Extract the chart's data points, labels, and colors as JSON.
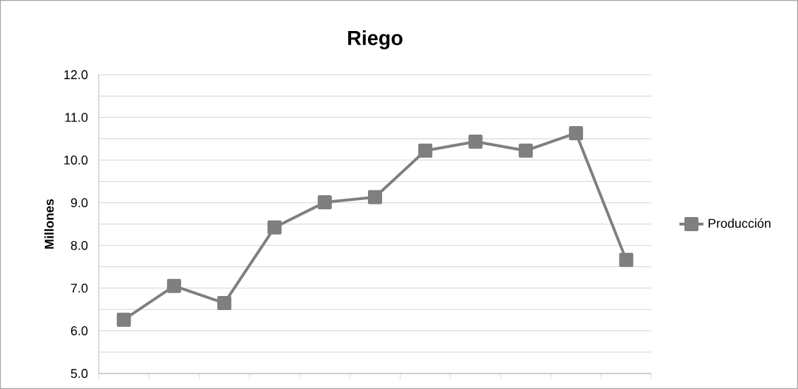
{
  "chart_data": {
    "type": "line",
    "title": "Riego",
    "ylabel": "Millones",
    "categories": [
      null,
      null,
      null,
      null,
      null,
      null,
      null,
      null,
      null,
      null,
      null
    ],
    "series": [
      {
        "name": "Producción",
        "color": "#7f7f7f",
        "values": [
          6.26,
          7.05,
          6.65,
          8.42,
          9.01,
          9.13,
          10.22,
          10.43,
          10.22,
          10.63,
          7.66
        ]
      }
    ],
    "ylim": [
      5,
      12
    ],
    "yticks": [
      {
        "value": 5,
        "label": "5.0"
      },
      {
        "value": 5.5,
        "label": null
      },
      {
        "value": 6,
        "label": "6.0"
      },
      {
        "value": 6.5,
        "label": null
      },
      {
        "value": 7,
        "label": "7.0"
      },
      {
        "value": 7.5,
        "label": null
      },
      {
        "value": 8,
        "label": "8.0"
      },
      {
        "value": 8.5,
        "label": null
      },
      {
        "value": 9,
        "label": "9.0"
      },
      {
        "value": 9.5,
        "label": null
      },
      {
        "value": 10,
        "label": "10.0"
      },
      {
        "value": 10.5,
        "label": null
      },
      {
        "value": 11,
        "label": "11.0"
      },
      {
        "value": 11.5,
        "label": null
      },
      {
        "value": 12,
        "label": "12.0"
      }
    ],
    "grid": "y",
    "legend": "right",
    "marker": "square",
    "line_style": "solid"
  }
}
